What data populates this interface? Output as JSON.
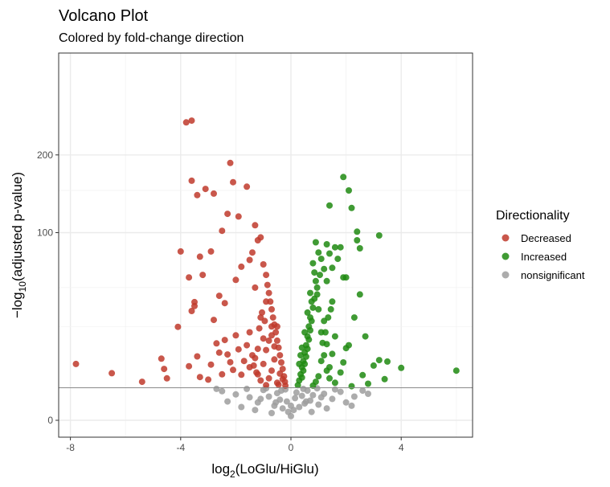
{
  "chart_data": {
    "type": "scatter",
    "title": "Volcano Plot",
    "subtitle": "Colored by fold-change direction",
    "xlabel": {
      "prefix": "log",
      "sub": "2",
      "body": "(LoGlu/HiGlu)"
    },
    "ylabel": {
      "prefix": "−log",
      "sub": "10",
      "body": "(adjusted p-value)"
    },
    "x_ticks": [
      {
        "value": -8,
        "label": "-8"
      },
      {
        "value": -4,
        "label": "-4"
      },
      {
        "value": 0,
        "label": "0"
      },
      {
        "value": 4,
        "label": "4"
      }
    ],
    "y_ticks": [
      {
        "value": 0,
        "label": "0"
      },
      {
        "value": 100,
        "label": "100"
      },
      {
        "value": 200,
        "label": "200"
      }
    ],
    "xlim": [
      -8.5,
      6.5
    ],
    "ylim": [
      0,
      250
    ],
    "y_transform": "sqrt",
    "significance_threshold": 3,
    "grid": true,
    "legend": {
      "title": "Directionality",
      "placement": "right",
      "entries": [
        {
          "label": "Decreased",
          "color": "#c0392b"
        },
        {
          "label": "Increased",
          "color": "#1e8a11"
        },
        {
          "label": "nonsignificant",
          "color": "#9e9e9e"
        }
      ]
    },
    "series": [
      {
        "name": "Decreased",
        "color": "#c0392b",
        "points": [
          [
            -7.8,
            9.0
          ],
          [
            -6.5,
            6.3
          ],
          [
            -5.4,
            4.2
          ],
          [
            -4.7,
            10.8
          ],
          [
            -4.6,
            7.5
          ],
          [
            -4.5,
            5.0
          ],
          [
            -4.1,
            24.8
          ],
          [
            -3.7,
            8.3
          ],
          [
            -3.6,
            33.9
          ],
          [
            -3.5,
            37.1
          ],
          [
            -3.5,
            39.7
          ],
          [
            -3.4,
            11.6
          ],
          [
            -3.3,
            5.3
          ],
          [
            -3.2,
            60.0
          ],
          [
            -3.0,
            4.7
          ],
          [
            -2.9,
            8.8
          ],
          [
            -2.8,
            28.6
          ],
          [
            -2.7,
            16.8
          ],
          [
            -2.6,
            13.0
          ],
          [
            -2.5,
            6.0
          ],
          [
            -2.4,
            18.3
          ],
          [
            -2.3,
            12.3
          ],
          [
            -2.2,
            9.6
          ],
          [
            -2.1,
            7.2
          ],
          [
            -2.0,
            20.5
          ],
          [
            -1.9,
            14.3
          ],
          [
            -1.8,
            5.9
          ],
          [
            -1.7,
            10.0
          ],
          [
            -1.6,
            16.0
          ],
          [
            -1.5,
            8.0
          ],
          [
            -1.5,
            22.0
          ],
          [
            -1.4,
            12.0
          ],
          [
            -1.3,
            50.0
          ],
          [
            -1.2,
            6.0
          ],
          [
            -1.1,
            30.0
          ],
          [
            -1.0,
            9.0
          ],
          [
            -0.9,
            40.0
          ],
          [
            -0.9,
            14.0
          ],
          [
            -0.8,
            18.0
          ],
          [
            -0.7,
            25.0
          ],
          [
            -2.3,
            121.0
          ],
          [
            -2.5,
            102.0
          ],
          [
            -2.9,
            81.0
          ],
          [
            -3.3,
            76.0
          ],
          [
            -4.0,
            81.0
          ],
          [
            -3.7,
            58.0
          ],
          [
            -2.8,
            146.0
          ],
          [
            -3.1,
            152.0
          ],
          [
            -3.4,
            144.0
          ],
          [
            -3.6,
            163.0
          ],
          [
            -3.8,
            252.0
          ],
          [
            -3.6,
            255.0
          ],
          [
            -2.2,
            188.0
          ],
          [
            -2.1,
            161.0
          ],
          [
            -1.9,
            118.0
          ],
          [
            -1.6,
            155.0
          ],
          [
            -1.3,
            108.0
          ],
          [
            -1.2,
            92.0
          ],
          [
            -1.1,
            95.0
          ],
          [
            -1.4,
            80.0
          ],
          [
            -1.5,
            73.0
          ],
          [
            -1.8,
            67.0
          ],
          [
            -2.0,
            56.0
          ],
          [
            -2.6,
            44.0
          ],
          [
            -2.4,
            39.0
          ],
          [
            -1.0,
            69.0
          ],
          [
            -0.9,
            60.0
          ],
          [
            -0.85,
            52.0
          ],
          [
            -0.8,
            46.0
          ],
          [
            -0.75,
            40.0
          ],
          [
            -0.7,
            35.0
          ],
          [
            -0.65,
            30.0
          ],
          [
            -0.6,
            26.0
          ],
          [
            -0.55,
            22.0
          ],
          [
            -0.5,
            18.0
          ],
          [
            -0.45,
            15.0
          ],
          [
            -0.4,
            12.0
          ],
          [
            -0.35,
            9.5
          ],
          [
            -0.3,
            7.5
          ],
          [
            -0.25,
            5.5
          ],
          [
            -0.22,
            4.2
          ],
          [
            -0.2,
            3.4
          ],
          [
            -1.05,
            33.0
          ],
          [
            -0.95,
            28.0
          ],
          [
            -1.15,
            24.0
          ],
          [
            -1.0,
            19.0
          ],
          [
            -1.2,
            14.5
          ],
          [
            -1.3,
            11.0
          ],
          [
            -0.6,
            10.5
          ],
          [
            -0.7,
            7.0
          ],
          [
            -0.8,
            5.0
          ],
          [
            -0.5,
            4.0
          ],
          [
            -0.9,
            3.5
          ],
          [
            -1.1,
            4.5
          ],
          [
            -1.25,
            6.5
          ],
          [
            -1.35,
            8.5
          ],
          [
            -0.4,
            6.2
          ],
          [
            -0.3,
            4.8
          ],
          [
            -0.45,
            3.6
          ],
          [
            -0.6,
            15.5
          ],
          [
            -0.7,
            20.5
          ],
          [
            -0.5,
            25.0
          ]
        ]
      },
      {
        "name": "Increased",
        "color": "#1e8a11",
        "points": [
          [
            6.0,
            7.0
          ],
          [
            4.0,
            7.8
          ],
          [
            3.5,
            9.8
          ],
          [
            3.2,
            10.3
          ],
          [
            3.4,
            4.8
          ],
          [
            2.6,
            5.8
          ],
          [
            2.2,
            3.3
          ],
          [
            2.8,
            3.8
          ],
          [
            2.0,
            14.8
          ],
          [
            1.9,
            9.5
          ],
          [
            1.8,
            6.5
          ],
          [
            1.6,
            20.0
          ],
          [
            1.5,
            12.5
          ],
          [
            1.4,
            8.0
          ],
          [
            1.3,
            16.5
          ],
          [
            1.2,
            28.0
          ],
          [
            1.1,
            22.0
          ],
          [
            1.0,
            35.0
          ],
          [
            0.95,
            45.0
          ],
          [
            0.9,
            55.0
          ],
          [
            0.85,
            62.0
          ],
          [
            0.8,
            70.0
          ],
          [
            0.75,
            40.0
          ],
          [
            0.7,
            30.0
          ],
          [
            0.65,
            25.0
          ],
          [
            0.6,
            20.0
          ],
          [
            0.55,
            16.0
          ],
          [
            0.5,
            13.0
          ],
          [
            0.45,
            10.0
          ],
          [
            0.4,
            8.0
          ],
          [
            0.35,
            6.0
          ],
          [
            0.3,
            4.5
          ],
          [
            0.25,
            3.5
          ],
          [
            1.3,
            55.0
          ],
          [
            1.5,
            66.0
          ],
          [
            1.7,
            74.0
          ],
          [
            1.9,
            58.0
          ],
          [
            2.0,
            58.0
          ],
          [
            1.4,
            79.0
          ],
          [
            1.2,
            65.0
          ],
          [
            1.6,
            85.0
          ],
          [
            1.8,
            85.0
          ],
          [
            2.5,
            45.0
          ],
          [
            2.3,
            30.0
          ],
          [
            2.7,
            20.0
          ],
          [
            3.0,
            8.5
          ],
          [
            2.1,
            16.0
          ],
          [
            1.5,
            40.0
          ],
          [
            1.0,
            80.0
          ],
          [
            1.3,
            88.0
          ],
          [
            2.2,
            128.0
          ],
          [
            2.4,
            101.0
          ],
          [
            2.4,
            92.0
          ],
          [
            1.4,
            131.0
          ],
          [
            1.9,
            168.0
          ],
          [
            2.1,
            150.0
          ],
          [
            3.2,
            97.0
          ],
          [
            2.5,
            84.0
          ],
          [
            0.9,
            90.0
          ],
          [
            1.1,
            74.0
          ],
          [
            1.05,
            60.0
          ],
          [
            0.95,
            50.0
          ],
          [
            0.85,
            42.0
          ],
          [
            0.8,
            36.0
          ],
          [
            0.75,
            28.0
          ],
          [
            0.7,
            23.0
          ],
          [
            0.65,
            18.5
          ],
          [
            0.6,
            14.5
          ],
          [
            0.55,
            11.5
          ],
          [
            0.5,
            9.0
          ],
          [
            0.45,
            7.0
          ],
          [
            0.4,
            5.2
          ],
          [
            1.2,
            12.0
          ],
          [
            1.1,
            10.0
          ],
          [
            1.3,
            7.0
          ],
          [
            1.0,
            5.5
          ],
          [
            0.9,
            4.2
          ],
          [
            0.8,
            3.4
          ],
          [
            1.4,
            5.0
          ],
          [
            1.6,
            4.0
          ],
          [
            1.15,
            17.0
          ],
          [
            1.25,
            22.0
          ],
          [
            1.35,
            30.0
          ],
          [
            1.45,
            35.0
          ],
          [
            0.7,
            46.0
          ],
          [
            0.6,
            33.0
          ],
          [
            0.5,
            22.0
          ],
          [
            0.4,
            15.0
          ],
          [
            0.35,
            12.0
          ],
          [
            0.3,
            9.0
          ]
        ]
      },
      {
        "name": "nonsignificant",
        "color": "#9e9e9e",
        "points": [
          [
            -2.5,
            2.4
          ],
          [
            -2.0,
            1.9
          ],
          [
            -1.5,
            1.5
          ],
          [
            -1.2,
            0.9
          ],
          [
            -1.0,
            2.6
          ],
          [
            -0.8,
            1.6
          ],
          [
            -0.6,
            0.6
          ],
          [
            -0.5,
            2.1
          ],
          [
            -0.4,
            1.2
          ],
          [
            -0.3,
            0.4
          ],
          [
            -0.2,
            2.7
          ],
          [
            -0.15,
            1.0
          ],
          [
            -0.1,
            0.2
          ],
          [
            0.0,
            0.05
          ],
          [
            0.1,
            0.3
          ],
          [
            0.15,
            1.4
          ],
          [
            0.2,
            2.2
          ],
          [
            0.3,
            0.5
          ],
          [
            0.4,
            1.7
          ],
          [
            0.5,
            0.8
          ],
          [
            0.6,
            2.5
          ],
          [
            0.7,
            1.1
          ],
          [
            0.8,
            1.8
          ],
          [
            1.0,
            0.7
          ],
          [
            1.2,
            2.0
          ],
          [
            1.5,
            1.3
          ],
          [
            1.8,
            2.3
          ],
          [
            2.0,
            0.9
          ],
          [
            2.3,
            1.6
          ],
          [
            2.6,
            2.5
          ],
          [
            -1.8,
            0.5
          ],
          [
            -2.3,
            1.0
          ],
          [
            -1.3,
            0.3
          ],
          [
            1.3,
            0.4
          ],
          [
            2.2,
            0.6
          ],
          [
            -0.7,
            0.15
          ],
          [
            0.75,
            0.2
          ],
          [
            -0.9,
            2.9
          ],
          [
            0.95,
            2.9
          ],
          [
            -2.7,
            2.8
          ],
          [
            2.8,
            2.0
          ],
          [
            -1.6,
            2.8
          ],
          [
            1.6,
            2.7
          ],
          [
            -0.35,
            2.5
          ],
          [
            0.45,
            2.8
          ],
          [
            -1.1,
            1.3
          ],
          [
            1.1,
            1.5
          ],
          [
            -0.55,
            0.9
          ],
          [
            0.55,
            1.0
          ],
          [
            0.0,
            0.6
          ]
        ]
      }
    ]
  }
}
